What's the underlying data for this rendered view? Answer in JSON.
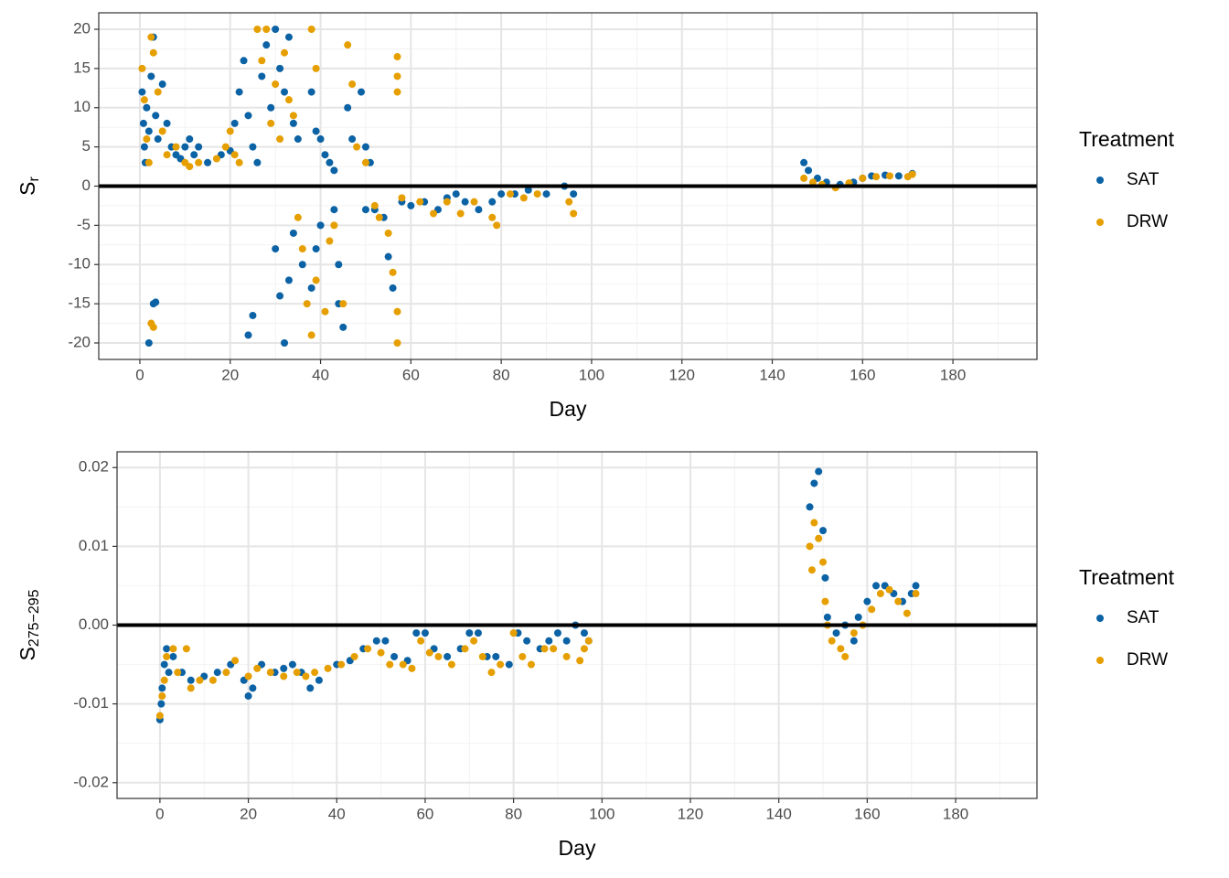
{
  "chart_data": [
    {
      "type": "scatter",
      "xlabel": "Day",
      "ylabel": "S",
      "ylabel_sub": "r",
      "xlim": [
        -9.1,
        198.6
      ],
      "ylim": [
        -22.1,
        22.1
      ],
      "xticks": [
        0,
        20,
        40,
        60,
        80,
        100,
        120,
        140,
        160,
        180
      ],
      "xticks_minor": [
        10,
        30,
        50,
        70,
        90,
        110,
        130,
        150,
        170,
        190
      ],
      "yticks": [
        -20,
        -15,
        -10,
        -5,
        0,
        5,
        10,
        15,
        20
      ],
      "yticks_minor": [
        -17.5,
        -12.5,
        -7.5,
        -2.5,
        2.5,
        7.5,
        12.5,
        17.5
      ],
      "grid": true,
      "hline": 0,
      "legend_title": "Treatment",
      "legend_position": "right",
      "series": [
        {
          "name": "SAT",
          "color": "#0b62a4",
          "x": [
            0.5,
            0.8,
            1,
            1.2,
            1.5,
            2,
            2.5,
            3,
            3.5,
            4,
            3,
            3.5,
            2,
            5,
            6,
            7,
            8,
            9,
            10,
            11,
            12,
            13,
            15,
            18,
            20,
            21,
            22,
            23,
            24,
            25,
            26,
            27,
            28,
            29,
            30,
            31,
            32,
            33,
            34,
            35,
            25,
            24,
            30,
            31,
            32,
            33,
            34,
            36,
            38,
            39,
            40,
            38,
            39,
            40,
            41,
            42,
            43,
            43,
            44,
            45,
            44,
            46,
            47,
            49,
            50,
            51,
            50,
            52,
            54,
            55,
            56,
            58,
            60,
            63,
            66,
            68,
            70,
            72,
            75,
            78,
            80,
            83,
            86,
            90,
            94,
            96,
            147,
            148,
            150,
            152,
            155,
            158,
            160,
            162,
            165,
            168,
            171
          ],
          "values": [
            12,
            8,
            5,
            3,
            10,
            7,
            14,
            19,
            9,
            6,
            -15,
            -14.8,
            -20,
            13,
            8,
            5,
            4,
            3.5,
            5,
            6,
            4,
            5,
            3,
            4,
            4.5,
            8,
            12,
            16,
            9,
            5,
            3,
            14,
            18,
            10,
            20,
            15,
            12,
            19,
            8,
            6,
            -16.5,
            -19,
            -8,
            -14,
            -20,
            -12,
            -6,
            -10,
            -13,
            -8,
            -5,
            12,
            7,
            6,
            4,
            3,
            2,
            -3,
            -10,
            -18,
            -15,
            10,
            6,
            12,
            5,
            3,
            -3,
            -3,
            -4,
            -9,
            -13,
            -2,
            -2.5,
            -2,
            -3,
            -1.5,
            -1,
            -2,
            -3,
            -2,
            -1,
            -1,
            -0.5,
            -1,
            0,
            -1,
            3,
            2,
            1,
            0.5,
            0.2,
            0.5,
            1,
            1.3,
            1.4,
            1.3,
            1.6
          ]
        },
        {
          "name": "DRW",
          "color": "#e69f00",
          "x": [
            0.5,
            1,
            1.5,
            2,
            2.5,
            3,
            2.5,
            3,
            4,
            5,
            6,
            8,
            10,
            11,
            13,
            17,
            19,
            20,
            21,
            22,
            26,
            27,
            28,
            29,
            30,
            31,
            32,
            33,
            34,
            35,
            36,
            37,
            38,
            39,
            38,
            39,
            41,
            42,
            43,
            45,
            46,
            47,
            48,
            50,
            52,
            53,
            55,
            56,
            57,
            57,
            57,
            57,
            57,
            58,
            62,
            65,
            68,
            71,
            74,
            78,
            79,
            82,
            85,
            88,
            95,
            96,
            147,
            149,
            151,
            154,
            157,
            160,
            163,
            166,
            170,
            171
          ],
          "values": [
            15,
            11,
            6,
            3,
            19,
            17,
            -17.5,
            -18,
            12,
            7,
            4,
            5,
            3,
            2.5,
            3,
            3.5,
            5,
            7,
            4,
            3,
            20,
            16,
            20,
            8,
            13,
            6,
            17,
            11,
            9,
            -4,
            -8,
            -15,
            -19,
            -12,
            20,
            15,
            -16,
            -7,
            -5,
            -15,
            18,
            13,
            5,
            3,
            -2.5,
            -4,
            -6,
            -11,
            -16,
            -20,
            16.5,
            14,
            12,
            -1.5,
            -2,
            -3.5,
            -2,
            -3.5,
            -2,
            -4,
            -5,
            -1,
            -1.5,
            -1,
            -2,
            -3.5,
            1,
            0.5,
            0.2,
            -0.2,
            0.4,
            1,
            1.2,
            1.3,
            1.2,
            1.5
          ]
        }
      ]
    },
    {
      "type": "scatter",
      "xlabel": "Day",
      "ylabel": "S",
      "ylabel_sub": "275−295",
      "xlim": [
        -9.7,
        198.4
      ],
      "ylim": [
        -0.022,
        0.022
      ],
      "xticks": [
        0,
        20,
        40,
        60,
        80,
        100,
        120,
        140,
        160,
        180
      ],
      "xticks_minor": [
        10,
        30,
        50,
        70,
        90,
        110,
        130,
        150,
        170,
        190
      ],
      "yticks": [
        -0.02,
        -0.01,
        {
          "value": 0,
          "label": "0.00"
        },
        0.01,
        0.02
      ],
      "yticks_minor": [
        -0.015,
        -0.005,
        0.005,
        0.015
      ],
      "grid": true,
      "hline": 0,
      "legend_title": "Treatment",
      "legend_position": "right",
      "series": [
        {
          "name": "SAT",
          "color": "#0b62a4",
          "x": [
            0,
            0.3,
            0.5,
            1,
            1.5,
            2,
            3,
            5,
            7,
            10,
            13,
            16,
            19,
            20,
            21,
            23,
            26,
            28,
            30,
            32,
            34,
            36,
            40,
            43,
            46,
            49,
            51,
            53,
            56,
            58,
            60,
            62,
            65,
            68,
            70,
            72,
            74,
            76,
            79,
            81,
            83,
            86,
            88,
            90,
            92,
            94,
            96,
            97,
            147,
            148,
            149,
            150,
            150.5,
            151,
            153,
            155,
            157,
            158,
            160,
            162,
            164,
            166,
            168,
            170,
            171
          ],
          "values": [
            -0.012,
            -0.01,
            -0.008,
            -0.005,
            -0.003,
            -0.006,
            -0.004,
            -0.006,
            -0.007,
            -0.0065,
            -0.006,
            -0.005,
            -0.007,
            -0.009,
            -0.008,
            -0.005,
            -0.006,
            -0.0055,
            -0.005,
            -0.006,
            -0.008,
            -0.007,
            -0.005,
            -0.0045,
            -0.003,
            -0.002,
            -0.002,
            -0.004,
            -0.0045,
            -0.001,
            -0.001,
            -0.003,
            -0.004,
            -0.003,
            -0.001,
            -0.001,
            -0.004,
            -0.004,
            -0.005,
            -0.001,
            -0.002,
            -0.003,
            -0.002,
            -0.001,
            -0.002,
            0,
            -0.001,
            -0.002,
            0.015,
            0.018,
            0.0195,
            0.012,
            0.006,
            0.001,
            -0.001,
            0,
            -0.002,
            0.001,
            0.003,
            0.005,
            0.005,
            0.004,
            0.003,
            0.004,
            0.005
          ]
        },
        {
          "name": "DRW",
          "color": "#e69f00",
          "x": [
            0,
            0.5,
            1,
            1.5,
            3,
            4,
            6,
            7,
            9,
            12,
            15,
            17,
            20,
            22,
            25,
            28,
            31,
            33,
            35,
            38,
            41,
            44,
            47,
            50,
            52,
            55,
            57,
            59,
            61,
            63,
            66,
            69,
            71,
            73,
            75,
            77,
            80,
            82,
            84,
            87,
            89,
            92,
            95,
            96,
            97,
            147,
            147.5,
            148,
            149,
            150,
            150.5,
            151,
            152,
            154,
            155,
            157,
            159,
            161,
            163,
            165,
            167,
            169,
            171
          ],
          "values": [
            -0.0115,
            -0.009,
            -0.007,
            -0.004,
            -0.003,
            -0.006,
            -0.003,
            -0.008,
            -0.007,
            -0.007,
            -0.006,
            -0.0045,
            -0.0065,
            -0.0055,
            -0.006,
            -0.0065,
            -0.006,
            -0.0065,
            -0.006,
            -0.0055,
            -0.005,
            -0.004,
            -0.003,
            -0.0035,
            -0.005,
            -0.005,
            -0.0055,
            -0.002,
            -0.0035,
            -0.004,
            -0.005,
            -0.003,
            -0.002,
            -0.004,
            -0.006,
            -0.005,
            -0.001,
            -0.004,
            -0.005,
            -0.003,
            -0.003,
            -0.004,
            -0.0045,
            -0.003,
            -0.002,
            0.01,
            0.007,
            0.013,
            0.011,
            0.008,
            0.003,
            0,
            -0.002,
            -0.003,
            -0.004,
            -0.001,
            0,
            0.002,
            0.004,
            0.0045,
            0.003,
            0.0015,
            0.004
          ]
        }
      ]
    }
  ]
}
